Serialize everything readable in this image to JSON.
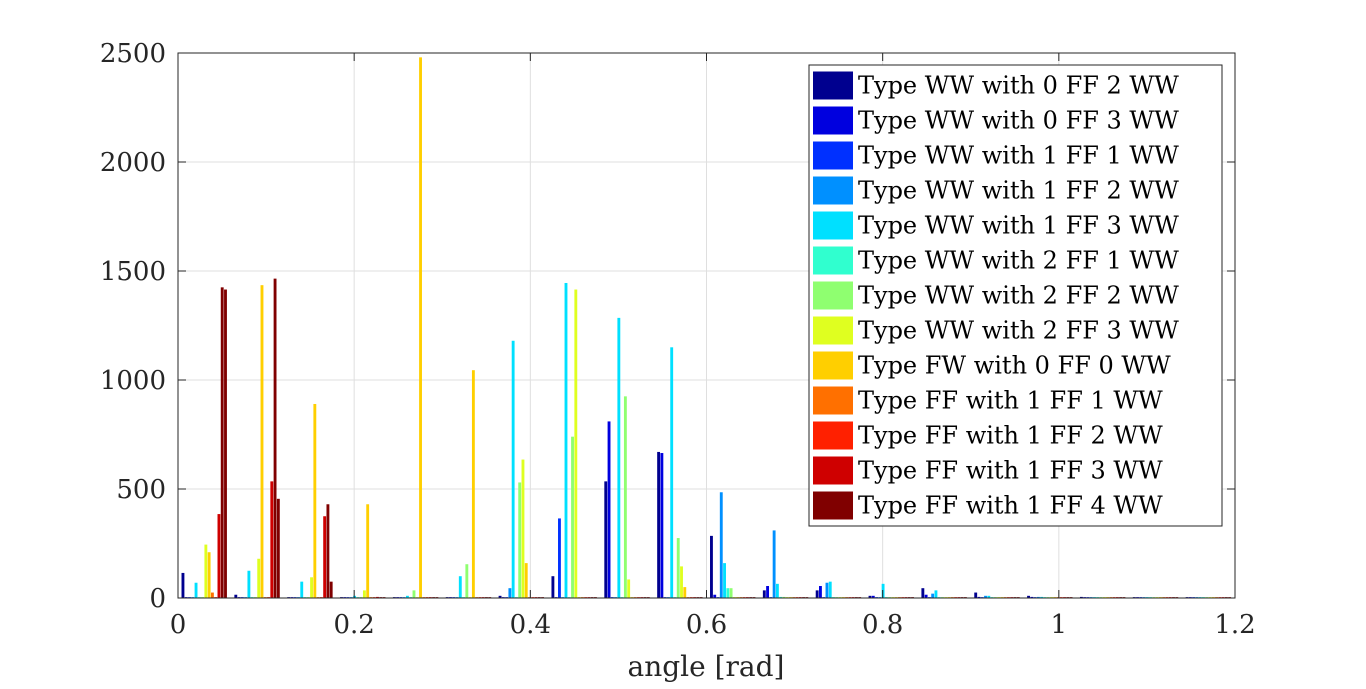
{
  "chart_data": {
    "type": "bar",
    "title": "",
    "xlabel": "angle [rad]",
    "ylabel": "",
    "xlim": [
      0,
      1.2
    ],
    "ylim": [
      0,
      2500
    ],
    "xticks": [
      "0",
      "0.2",
      "0.4",
      "0.6",
      "0.8",
      "1",
      "1.2"
    ],
    "yticks": [
      "0",
      "500",
      "1000",
      "1500",
      "2000",
      "2500"
    ],
    "grid": true,
    "legend_position": "top-right",
    "categories": [
      0.03,
      0.09,
      0.15,
      0.21,
      0.27,
      0.33,
      0.39,
      0.45,
      0.51,
      0.57,
      0.63,
      0.69,
      0.75,
      0.81,
      0.87,
      0.93,
      0.99,
      1.05,
      1.11,
      1.17
    ],
    "series": [
      {
        "name": "Type WW with 0 FF 2 WW",
        "color": "#00008F",
        "values": [
          115,
          15,
          0,
          0,
          0,
          0,
          10,
          100,
          535,
          670,
          285,
          35,
          35,
          10,
          45,
          25,
          10,
          5,
          3,
          2
        ]
      },
      {
        "name": "Type WW with 0 FF 3 WW",
        "color": "#0000DF",
        "values": [
          0,
          0,
          0,
          0,
          0,
          0,
          0,
          0,
          810,
          665,
          15,
          55,
          55,
          10,
          15,
          5,
          5,
          3,
          2,
          1
        ]
      },
      {
        "name": "Type WW with 1 FF 1 WW",
        "color": "#0030FF",
        "values": [
          0,
          0,
          0,
          0,
          0,
          0,
          0,
          365,
          0,
          0,
          0,
          0,
          0,
          0,
          0,
          0,
          0,
          0,
          0,
          0
        ]
      },
      {
        "name": "Type WW with 1 FF 2 WW",
        "color": "#0090FF",
        "values": [
          0,
          0,
          0,
          0,
          0,
          0,
          45,
          0,
          0,
          0,
          485,
          310,
          70,
          0,
          20,
          10,
          5,
          3,
          2,
          1
        ]
      },
      {
        "name": "Type WW with 1 FF 3 WW",
        "color": "#00E0FF",
        "values": [
          70,
          125,
          75,
          10,
          10,
          100,
          1180,
          1445,
          1285,
          1150,
          160,
          65,
          75,
          65,
          35,
          10,
          5,
          3,
          2,
          1
        ]
      },
      {
        "name": "Type WW with 2 FF 1 WW",
        "color": "#30FFCF",
        "values": [
          0,
          0,
          0,
          0,
          0,
          0,
          0,
          0,
          0,
          0,
          45,
          5,
          0,
          0,
          0,
          0,
          0,
          0,
          0,
          0
        ]
      },
      {
        "name": "Type WW with 2 FF 2 WW",
        "color": "#8FFF70",
        "values": [
          0,
          0,
          0,
          0,
          35,
          155,
          530,
          740,
          925,
          275,
          45,
          5,
          0,
          0,
          0,
          0,
          0,
          0,
          0,
          0
        ]
      },
      {
        "name": "Type WW with 2 FF 3 WW",
        "color": "#DFFF20",
        "values": [
          245,
          180,
          95,
          35,
          0,
          0,
          635,
          1415,
          85,
          145,
          0,
          0,
          0,
          0,
          0,
          0,
          0,
          0,
          0,
          0
        ]
      },
      {
        "name": "Type FW with 0 FF 0 WW",
        "color": "#FFCF00",
        "values": [
          210,
          1435,
          890,
          430,
          2480,
          1045,
          160,
          0,
          0,
          50,
          0,
          0,
          0,
          0,
          0,
          0,
          0,
          0,
          0,
          0
        ]
      },
      {
        "name": "Type FF with 1 FF 1 WW",
        "color": "#FF7000",
        "values": [
          25,
          0,
          0,
          0,
          0,
          0,
          0,
          0,
          0,
          0,
          0,
          0,
          0,
          0,
          0,
          0,
          0,
          0,
          0,
          0
        ]
      },
      {
        "name": "Type FF with 1 FF 2 WW",
        "color": "#FF2000",
        "values": [
          0,
          0,
          0,
          0,
          0,
          0,
          0,
          0,
          0,
          0,
          0,
          0,
          0,
          0,
          0,
          0,
          0,
          0,
          0,
          0
        ]
      },
      {
        "name": "Type FF with 1 FF 3 WW",
        "color": "#CF0000",
        "values": [
          385,
          535,
          375,
          5,
          0,
          0,
          0,
          0,
          0,
          0,
          0,
          0,
          0,
          0,
          0,
          0,
          0,
          0,
          0,
          0
        ]
      },
      {
        "name": "Type FF with 1 FF 4 WW",
        "color": "#800000",
        "values": [
          1425,
          1465,
          430,
          0,
          0,
          0,
          0,
          0,
          0,
          0,
          0,
          0,
          0,
          0,
          0,
          0,
          0,
          0,
          0,
          0
        ]
      },
      {
        "name": "",
        "color": "#800000",
        "values": [
          1415,
          455,
          75,
          0,
          0,
          0,
          0,
          0,
          0,
          0,
          0,
          0,
          0,
          0,
          0,
          0,
          0,
          0,
          0,
          0
        ]
      }
    ]
  }
}
